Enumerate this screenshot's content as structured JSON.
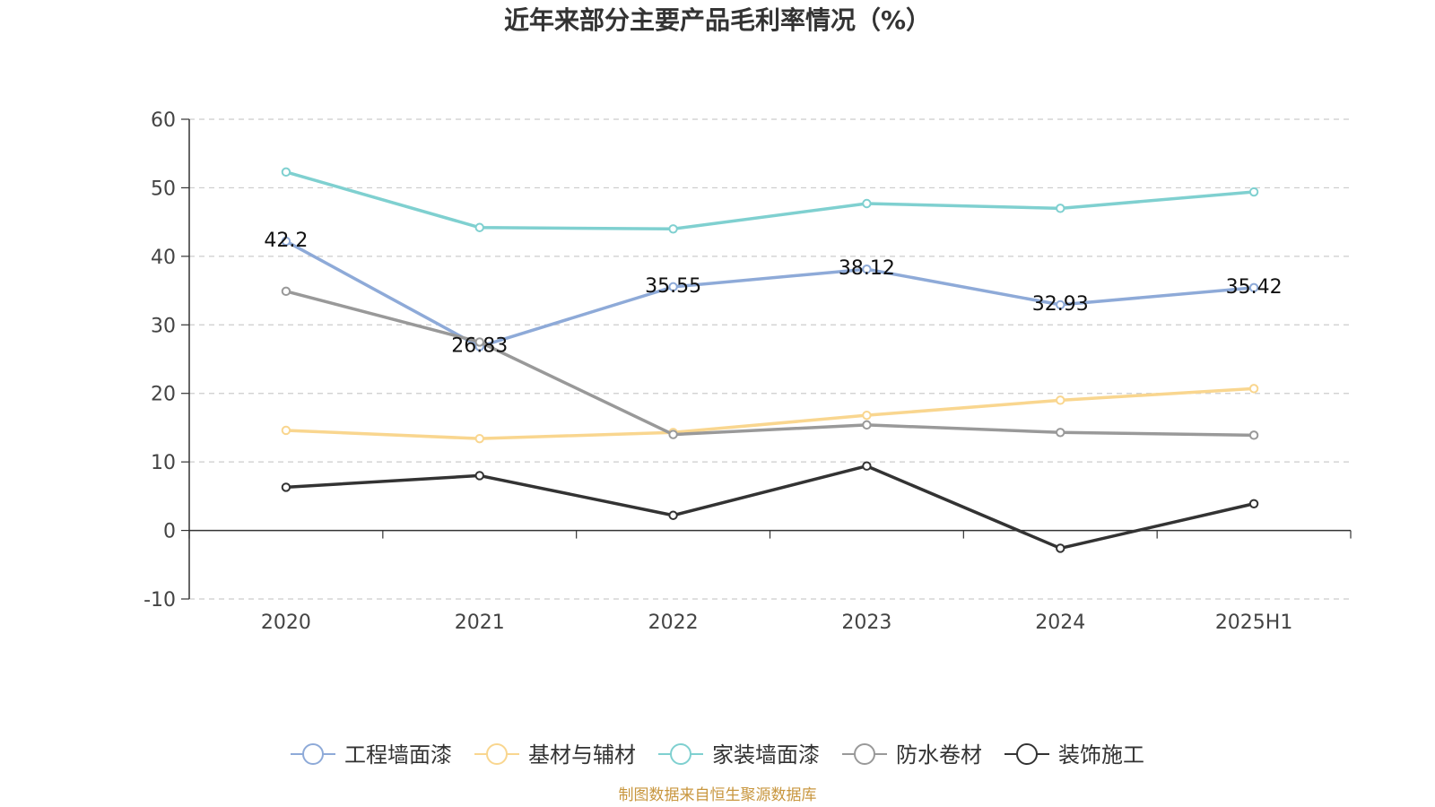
{
  "chart_data": {
    "type": "line",
    "title": "近年来部分主要产品毛利率情况（%）",
    "xlabel": "",
    "ylabel": "",
    "categories": [
      "2020",
      "2021",
      "2022",
      "2023",
      "2024",
      "2025H1"
    ],
    "ylim": [
      -10,
      60
    ],
    "yticks": [
      -10,
      0,
      10,
      20,
      30,
      40,
      50,
      60
    ],
    "grid": true,
    "legend_position": "bottom",
    "series": [
      {
        "name": "工程墙面漆",
        "color": "#8eaad8",
        "values": [
          42.2,
          26.83,
          35.55,
          38.12,
          32.93,
          35.42
        ],
        "labels": [
          "42.2",
          "26.83",
          "35.55",
          "38.12",
          "32.93",
          "35.42"
        ]
      },
      {
        "name": "基材与辅材",
        "color": "#f9d68f",
        "values": [
          14.6,
          13.4,
          14.3,
          16.8,
          19.0,
          20.7
        ]
      },
      {
        "name": "家装墙面漆",
        "color": "#7fd0d0",
        "values": [
          52.3,
          44.2,
          44.0,
          47.7,
          47.0,
          49.4
        ]
      },
      {
        "name": "防水卷材",
        "color": "#999999",
        "values": [
          34.9,
          27.5,
          14.0,
          15.4,
          14.3,
          13.9
        ]
      },
      {
        "name": "装饰施工",
        "color": "#333333",
        "values": [
          6.3,
          8.0,
          2.2,
          9.4,
          -2.6,
          3.9
        ]
      }
    ],
    "source": "制图数据来自恒生聚源数据库",
    "source_color": "#c8963e"
  }
}
